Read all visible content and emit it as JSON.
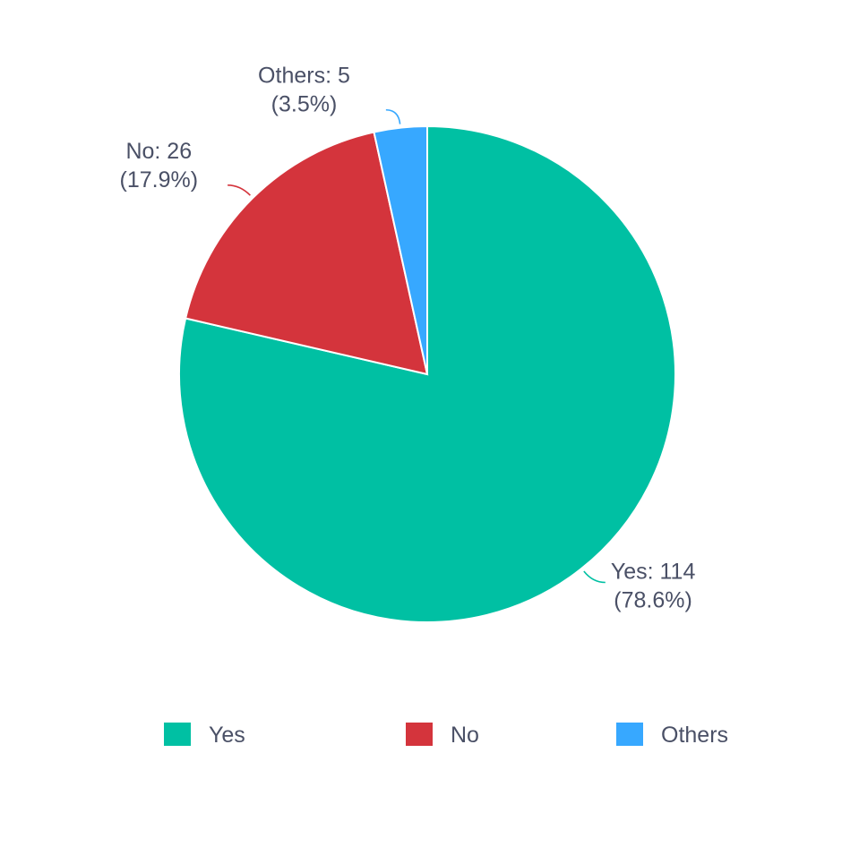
{
  "chart_data": {
    "type": "pie",
    "slices": [
      {
        "name": "Yes",
        "value": 114,
        "percent": 78.6,
        "color": "#00c0a3",
        "label_line1": "Yes: 114",
        "label_line2": "(78.6%)"
      },
      {
        "name": "No",
        "value": 26,
        "percent": 17.9,
        "color": "#d4343c",
        "label_line1": "No: 26",
        "label_line2": "(17.9%)"
      },
      {
        "name": "Others",
        "value": 5,
        "percent": 3.5,
        "color": "#37a8ff",
        "label_line1": "Others: 5",
        "label_line2": "(3.5%)"
      }
    ],
    "legend": {
      "placement": "bottom",
      "items": [
        "Yes",
        "No",
        "Others"
      ]
    }
  }
}
